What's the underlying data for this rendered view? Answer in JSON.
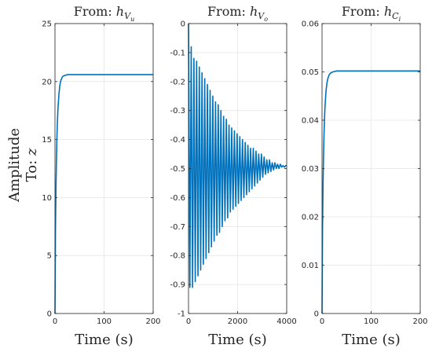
{
  "figure": {
    "ylabel_line1": "Amplitude",
    "ylabel_line2_prefix": "To: ",
    "ylabel_line2_var": "z"
  },
  "colors": {
    "line": "#0072BD",
    "axis": "#262626",
    "grid": "#e6e6e6"
  },
  "chart_data": [
    {
      "type": "line",
      "title_prefix": "From: ",
      "title_var": "h",
      "title_sub": "V",
      "title_subsub": "u",
      "xlabel": "Time (s)",
      "ylabel": "",
      "xlim": [
        0,
        200
      ],
      "ylim": [
        0,
        25
      ],
      "xticks": [
        0,
        100,
        200
      ],
      "yticks": [
        0,
        5,
        10,
        15,
        20,
        25
      ],
      "xtick_labels": [
        "0",
        "100",
        "200"
      ],
      "ytick_labels": [
        "0",
        "5",
        "10",
        "15",
        "20",
        "25"
      ],
      "series": [
        {
          "x": [
            0,
            1,
            2,
            3,
            4,
            5,
            6,
            8,
            10,
            12,
            15,
            18,
            22,
            26,
            30,
            40,
            60,
            100,
            150,
            200
          ],
          "y": [
            0,
            7.2,
            10.8,
            13.4,
            15.2,
            16.6,
            17.6,
            18.9,
            19.7,
            20.1,
            20.4,
            20.5,
            20.55,
            20.6,
            20.6,
            20.6,
            20.6,
            20.6,
            20.6,
            20.6
          ]
        }
      ]
    },
    {
      "type": "line",
      "title_prefix": "From: ",
      "title_var": "h",
      "title_sub": "V",
      "title_subsub": "o",
      "xlabel": "Time (s)",
      "ylabel": "",
      "xlim": [
        0,
        4000
      ],
      "ylim": [
        -1,
        0
      ],
      "xticks": [
        0,
        2000,
        4000
      ],
      "yticks": [
        -1,
        -0.9,
        -0.8,
        -0.7,
        -0.6,
        -0.5,
        -0.4,
        -0.3,
        -0.2,
        -0.1,
        0
      ],
      "xtick_labels": [
        "0",
        "2000",
        "4000"
      ],
      "ytick_labels": [
        "-1",
        "-0.9",
        "-0.8",
        "-0.7",
        "-0.6",
        "-0.5",
        "-0.4",
        "-0.3",
        "-0.2",
        "-0.1",
        "0"
      ],
      "series": [
        {
          "x": [
            0,
            55,
            110,
            165,
            220,
            275,
            330,
            385,
            440,
            495,
            550,
            605,
            660,
            715,
            770,
            825,
            880,
            935,
            990,
            1045,
            1100,
            1155,
            1210,
            1265,
            1320,
            1375,
            1430,
            1485,
            1540,
            1595,
            1650,
            1705,
            1760,
            1815,
            1870,
            1925,
            1980,
            2035,
            2090,
            2145,
            2200,
            2255,
            2310,
            2365,
            2420,
            2475,
            2530,
            2585,
            2640,
            2695,
            2750,
            2805,
            2860,
            2915,
            2970,
            3025,
            3080,
            3135,
            3190,
            3245,
            3300,
            3355,
            3410,
            3465,
            3520,
            3575,
            3630,
            3685,
            3740,
            3795,
            3850,
            3905,
            3960,
            4000
          ],
          "y": [
            0,
            -0.91,
            -0.08,
            -0.91,
            -0.12,
            -0.89,
            -0.13,
            -0.87,
            -0.15,
            -0.85,
            -0.17,
            -0.83,
            -0.19,
            -0.81,
            -0.21,
            -0.79,
            -0.23,
            -0.77,
            -0.25,
            -0.75,
            -0.27,
            -0.73,
            -0.28,
            -0.72,
            -0.3,
            -0.7,
            -0.32,
            -0.68,
            -0.33,
            -0.67,
            -0.35,
            -0.65,
            -0.36,
            -0.64,
            -0.37,
            -0.63,
            -0.38,
            -0.62,
            -0.39,
            -0.61,
            -0.4,
            -0.6,
            -0.41,
            -0.59,
            -0.42,
            -0.58,
            -0.43,
            -0.57,
            -0.43,
            -0.56,
            -0.44,
            -0.55,
            -0.45,
            -0.54,
            -0.45,
            -0.53,
            -0.46,
            -0.52,
            -0.47,
            -0.515,
            -0.47,
            -0.51,
            -0.48,
            -0.505,
            -0.48,
            -0.5,
            -0.485,
            -0.5,
            -0.485,
            -0.495,
            -0.49,
            -0.495,
            -0.49,
            -0.49
          ]
        }
      ]
    },
    {
      "type": "line",
      "title_prefix": "From: ",
      "title_var": "h",
      "title_sub": "C",
      "title_subsub": "i",
      "xlabel": "Time (s)",
      "ylabel": "",
      "xlim": [
        0,
        200
      ],
      "ylim": [
        0,
        0.06
      ],
      "xticks": [
        0,
        100,
        200
      ],
      "yticks": [
        0,
        0.01,
        0.02,
        0.03,
        0.04,
        0.05,
        0.06
      ],
      "xtick_labels": [
        "0",
        "100",
        "200"
      ],
      "ytick_labels": [
        "0",
        "0.01",
        "0.02",
        "0.03",
        "0.04",
        "0.05",
        "0.06"
      ],
      "series": [
        {
          "x": [
            0,
            1,
            2,
            3,
            4,
            5,
            6,
            8,
            10,
            12,
            15,
            18,
            22,
            26,
            30,
            40,
            60,
            100,
            150,
            200
          ],
          "y": [
            0,
            0.0175,
            0.0262,
            0.0325,
            0.0368,
            0.0402,
            0.0427,
            0.0459,
            0.0477,
            0.0487,
            0.0495,
            0.0498,
            0.05,
            0.0501,
            0.0502,
            0.0502,
            0.0502,
            0.0502,
            0.0502,
            0.0502
          ]
        }
      ]
    }
  ]
}
